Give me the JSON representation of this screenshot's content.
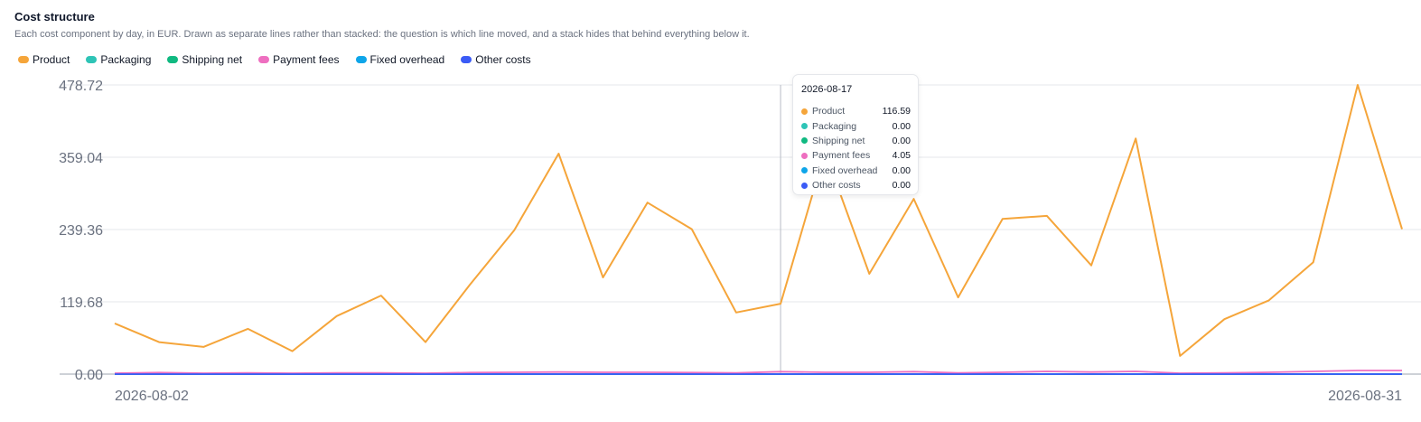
{
  "header": {
    "title": "Cost structure",
    "subtitle": "Each cost component by day, in EUR. Drawn as separate lines rather than stacked: the question is which line moved, and a stack hides that behind everything below it."
  },
  "legend": [
    {
      "label": "Product",
      "color": "#f5a53a"
    },
    {
      "label": "Packaging",
      "color": "#2ec4b6"
    },
    {
      "label": "Shipping net",
      "color": "#10b981"
    },
    {
      "label": "Payment fees",
      "color": "#ee6fc0"
    },
    {
      "label": "Fixed overhead",
      "color": "#0ea5e9"
    },
    {
      "label": "Other costs",
      "color": "#3b5bf6"
    }
  ],
  "tooltip": {
    "date": "2026-08-17",
    "rows": [
      {
        "name": "Product",
        "value": "116.59",
        "color": "#f5a53a"
      },
      {
        "name": "Packaging",
        "value": "0.00",
        "color": "#2ec4b6"
      },
      {
        "name": "Shipping net",
        "value": "0.00",
        "color": "#10b981"
      },
      {
        "name": "Payment fees",
        "value": "4.05",
        "color": "#ee6fc0"
      },
      {
        "name": "Fixed overhead",
        "value": "0.00",
        "color": "#0ea5e9"
      },
      {
        "name": "Other costs",
        "value": "0.00",
        "color": "#3b5bf6"
      }
    ]
  },
  "chart_data": {
    "type": "line",
    "title": "Cost structure",
    "x": [
      "2026-08-02",
      "2026-08-03",
      "2026-08-04",
      "2026-08-05",
      "2026-08-06",
      "2026-08-07",
      "2026-08-08",
      "2026-08-09",
      "2026-08-10",
      "2026-08-11",
      "2026-08-12",
      "2026-08-13",
      "2026-08-14",
      "2026-08-15",
      "2026-08-16",
      "2026-08-17",
      "2026-08-18",
      "2026-08-19",
      "2026-08-20",
      "2026-08-21",
      "2026-08-22",
      "2026-08-23",
      "2026-08-24",
      "2026-08-25",
      "2026-08-26",
      "2026-08-27",
      "2026-08-28",
      "2026-08-29",
      "2026-08-30",
      "2026-08-31"
    ],
    "x_tick_labels": [
      "2026-08-02",
      "2026-08-31"
    ],
    "y_tick_labels": [
      "0.00",
      "119.68",
      "239.36",
      "359.04",
      "478.72"
    ],
    "ylim": [
      0,
      478.72
    ],
    "grid": true,
    "legend_position": "top-left",
    "hover_index": 15,
    "series": [
      {
        "name": "Product",
        "color": "#f5a53a",
        "values": [
          84,
          53,
          45,
          75,
          38,
          96,
          130,
          53,
          148,
          238,
          365,
          160,
          284,
          240,
          102,
          116.59,
          368,
          166,
          290,
          127,
          257,
          262,
          180,
          390,
          30,
          91,
          122,
          185,
          478.72,
          240
        ]
      },
      {
        "name": "Packaging",
        "color": "#2ec4b6",
        "values": [
          0,
          0,
          0,
          0,
          0,
          0,
          0,
          0,
          0,
          0,
          0,
          0,
          0,
          0,
          0,
          0,
          0,
          0,
          0,
          0,
          0,
          0,
          0,
          0,
          0,
          0,
          0,
          0,
          0,
          0
        ]
      },
      {
        "name": "Shipping net",
        "color": "#10b981",
        "values": [
          0,
          0,
          0,
          0,
          0,
          0,
          0,
          0,
          0,
          0,
          0,
          0,
          0,
          0,
          0,
          0,
          0,
          0,
          0,
          0,
          0,
          0,
          0,
          0,
          0,
          0,
          0,
          0,
          0,
          0
        ]
      },
      {
        "name": "Payment fees",
        "color": "#ee6fc0",
        "values": [
          1.5,
          2.5,
          1.5,
          2,
          1.5,
          2,
          2,
          1.5,
          2.5,
          3,
          3.5,
          3,
          3,
          2.5,
          2,
          4.05,
          3,
          3,
          4,
          2,
          3,
          4.5,
          3.5,
          4.5,
          1.5,
          2,
          3,
          4.5,
          6,
          6
        ]
      },
      {
        "name": "Fixed overhead",
        "color": "#0ea5e9",
        "values": [
          0,
          0,
          0,
          0,
          0,
          0,
          0,
          0,
          0,
          0,
          0,
          0,
          0,
          0,
          0,
          0,
          0,
          0,
          0,
          0,
          0,
          0,
          0,
          0,
          0,
          0,
          0,
          0,
          0,
          0
        ]
      },
      {
        "name": "Other costs",
        "color": "#3b5bf6",
        "values": [
          0,
          0,
          0,
          0,
          0,
          0,
          0,
          0,
          0,
          0,
          0,
          0,
          0,
          0,
          0,
          0,
          0,
          0,
          0,
          0,
          0,
          0,
          0,
          0,
          0,
          0,
          0,
          0,
          0,
          0
        ]
      }
    ]
  }
}
